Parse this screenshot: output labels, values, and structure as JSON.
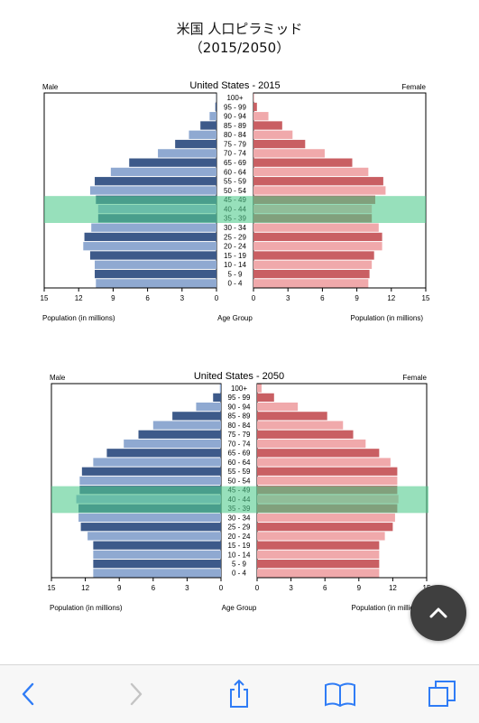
{
  "page": {
    "title_line1": "米国 人口ピラミッド",
    "title_line2": "（2015/2050）"
  },
  "common": {
    "male_label": "Male",
    "female_label": "Female",
    "xlabel_left": "Population (in millions)",
    "xlabel_center": "Age Group",
    "xlabel_right": "Population (in millions)"
  },
  "colors": {
    "male_dark": "#3d5a8a",
    "male_light": "#8fa9d1",
    "female_dark": "#c95f63",
    "female_light": "#f0a9ab",
    "highlight_band": "#52cc8d"
  },
  "chart_data": [
    {
      "type": "bar",
      "title": "United States - 2015",
      "age_groups": [
        "100+",
        "95 - 99",
        "90 - 94",
        "85 - 89",
        "80 - 84",
        "75 - 79",
        "70 - 74",
        "65 - 69",
        "60 - 64",
        "55 - 59",
        "50 - 54",
        "45 - 49",
        "40 - 44",
        "35 - 39",
        "30 - 34",
        "25 - 29",
        "20 - 24",
        "15 - 19",
        "10 - 14",
        "5 - 9",
        "0 - 4"
      ],
      "series": [
        {
          "name": "Male",
          "values": [
            0.02,
            0.1,
            0.6,
            1.4,
            2.4,
            3.6,
            5.1,
            7.6,
            9.2,
            10.6,
            11.0,
            10.5,
            10.3,
            10.3,
            10.9,
            11.5,
            11.6,
            11.0,
            10.6,
            10.6,
            10.5
          ]
        },
        {
          "name": "Female",
          "values": [
            0.06,
            0.3,
            1.3,
            2.5,
            3.4,
            4.5,
            6.2,
            8.6,
            10.0,
            11.3,
            11.5,
            10.6,
            10.3,
            10.3,
            10.9,
            11.2,
            11.2,
            10.5,
            10.3,
            10.1,
            10.0
          ]
        }
      ],
      "xlim": [
        0,
        15
      ],
      "x_ticks": [
        "15",
        "12",
        "9",
        "6",
        "3",
        "0",
        "0",
        "3",
        "6",
        "9",
        "12",
        "15"
      ],
      "highlight_groups": [
        "40 - 44",
        "35 - 39"
      ]
    },
    {
      "type": "bar",
      "title": "United States - 2050",
      "age_groups": [
        "100+",
        "95 - 99",
        "90 - 94",
        "85 - 89",
        "80 - 84",
        "75 - 79",
        "70 - 74",
        "65 - 69",
        "60 - 64",
        "55 - 59",
        "50 - 54",
        "45 - 49",
        "40 - 44",
        "35 - 39",
        "30 - 34",
        "25 - 29",
        "20 - 24",
        "15 - 19",
        "10 - 14",
        "5 - 9",
        "0 - 4"
      ],
      "series": [
        {
          "name": "Male",
          "values": [
            0.1,
            0.7,
            2.2,
            4.3,
            6.0,
            7.3,
            8.6,
            10.1,
            11.3,
            12.3,
            12.5,
            12.5,
            12.8,
            12.6,
            12.6,
            12.4,
            11.8,
            11.3,
            11.3,
            11.3,
            11.3
          ]
        },
        {
          "name": "Female",
          "values": [
            0.4,
            1.5,
            3.6,
            6.2,
            7.6,
            8.5,
            9.6,
            10.8,
            11.8,
            12.4,
            12.4,
            12.4,
            12.5,
            12.4,
            12.2,
            12.0,
            11.3,
            10.8,
            10.8,
            10.8,
            10.8
          ]
        }
      ],
      "xlim": [
        0,
        15
      ],
      "x_ticks": [
        "15",
        "12",
        "9",
        "6",
        "3",
        "0",
        "0",
        "3",
        "6",
        "9",
        "12",
        "15"
      ],
      "highlight_groups": [
        "40 - 44",
        "35 - 39"
      ]
    }
  ],
  "toolbar": {
    "back_icon": "chevron-left-icon",
    "forward_icon": "chevron-right-icon",
    "share_icon": "share-icon",
    "bookmarks_icon": "book-icon",
    "tabs_icon": "tabs-icon"
  },
  "fab": {
    "icon": "chevron-up-icon"
  }
}
